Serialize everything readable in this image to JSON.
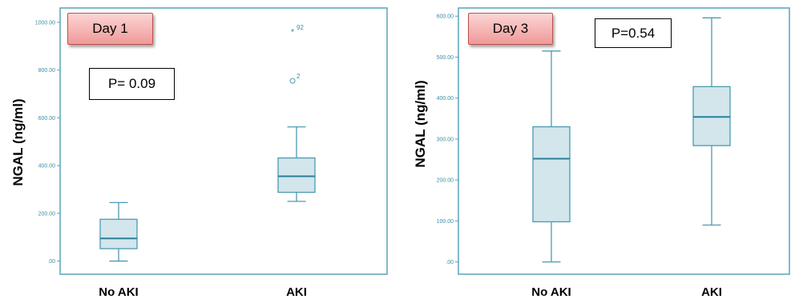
{
  "colors": {
    "axis": "#5aa3b8",
    "box_fill": "#d2e6ec",
    "box_stroke": "#4a9bb1",
    "median": "#2a7f99",
    "tick_text": "#3a8fa6"
  },
  "chart_data": [
    {
      "type": "box",
      "badge": "Day 1",
      "p_value": "P= 0.09",
      "ylabel": "NGAL (ng/ml)",
      "categories": [
        "No AKI",
        "AKI"
      ],
      "ylim": [
        -55,
        1060
      ],
      "yticks": [
        ".00",
        "200.00",
        "400.00",
        "600.00",
        "800.00",
        "1000.00"
      ],
      "ytick_values": [
        0,
        200,
        400,
        600,
        800,
        1000
      ],
      "boxes": [
        {
          "category": "No AKI",
          "min": 0,
          "q1": 52,
          "median": 95,
          "q3": 175,
          "max": 245
        },
        {
          "category": "AKI",
          "min": 250,
          "q1": 288,
          "median": 355,
          "q3": 432,
          "max": 562
        }
      ],
      "outliers": [
        {
          "category": "AKI",
          "value": 755,
          "symbol": "circle",
          "label": "2"
        },
        {
          "category": "AKI",
          "value": 960,
          "symbol": "star",
          "label": "92"
        }
      ]
    },
    {
      "type": "box",
      "badge": "Day 3",
      "p_value": "P=0.54",
      "ylabel": "NGAL (ng/ml)",
      "categories": [
        "No AKI",
        "AKI"
      ],
      "ylim": [
        -30,
        620
      ],
      "yticks": [
        ".00",
        "100.00",
        "200.00",
        "300.00",
        "400.00",
        "500.00",
        "600.00"
      ],
      "ytick_values": [
        0,
        100,
        200,
        300,
        400,
        500,
        600
      ],
      "boxes": [
        {
          "category": "No AKI",
          "min": 0,
          "q1": 98,
          "median": 252,
          "q3": 330,
          "max": 515
        },
        {
          "category": "AKI",
          "min": 90,
          "q1": 284,
          "median": 354,
          "q3": 428,
          "max": 596
        }
      ],
      "outliers": []
    }
  ]
}
